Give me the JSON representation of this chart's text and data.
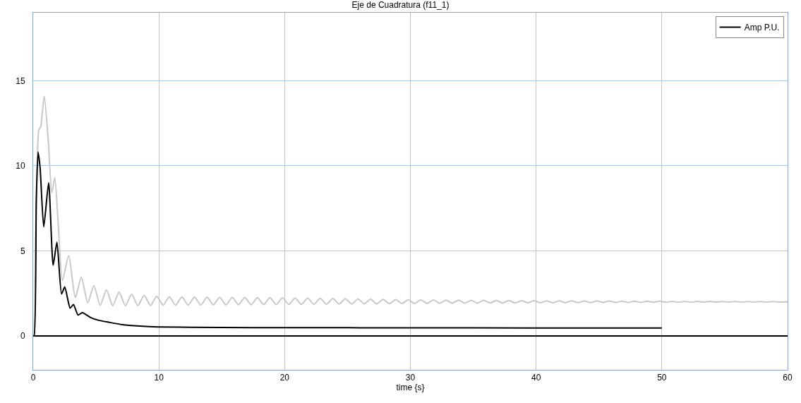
{
  "chart_data": {
    "type": "line",
    "title": "Eje de Cuadratura (f11_1)",
    "xlabel": "time {s}",
    "xlim": [
      0,
      60
    ],
    "xticks": [
      0,
      10,
      20,
      30,
      40,
      50,
      60
    ],
    "ylim": [
      -2,
      19
    ],
    "yticks": [
      0,
      5,
      10,
      15
    ],
    "grid": true,
    "legend": "top right",
    "marker": "none",
    "line_style": "solid",
    "series": [
      {
        "color": "#c8c8c8",
        "x": [
          0,
          0.07,
          0.2,
          0.35,
          0.45,
          0.6,
          0.88,
          1.2,
          1.48,
          1.72,
          2.0,
          2.32,
          2.83,
          3.35,
          3.83,
          4.34,
          4.83,
          5.33,
          5.83,
          6.33,
          6.83,
          7.33,
          7.83,
          8.33,
          8.83,
          9.33,
          9.83,
          10.33,
          10.83,
          11.33,
          11.83,
          12.33,
          12.83,
          13.33,
          13.83,
          14.33,
          14.83,
          15.33,
          15.83,
          16.33,
          16.83,
          17.33,
          17.83,
          18.33,
          18.83,
          19.33,
          19.83,
          20.33,
          20.83,
          21.33,
          21.83,
          22.33,
          22.83,
          23.33,
          23.83,
          24.33,
          24.83,
          25.33,
          25.83,
          26.33,
          26.83,
          27.33,
          27.83,
          28.33,
          28.83,
          29.33,
          29.83,
          30.33,
          30.83,
          31.33,
          31.83,
          32.33,
          32.83,
          33.33,
          33.83,
          34.33,
          34.83,
          35.33,
          35.83,
          36.33,
          36.83,
          37.33,
          37.83,
          38.33,
          38.83,
          39.33,
          39.83,
          40.33,
          40.83,
          41.33,
          41.83,
          42.33,
          42.83,
          43.33,
          43.83,
          44.33,
          44.83,
          45.33,
          45.83,
          46.33,
          46.83,
          47.33,
          47.83,
          48.33,
          48.83,
          49.33,
          49.83,
          50.33,
          50.83,
          51.33,
          51.83,
          52.33,
          52.83,
          53.33,
          53.83,
          54.33,
          54.83,
          55.33,
          55.83,
          56.33,
          56.83,
          57.33,
          57.83,
          58.33,
          58.83,
          59.33,
          60
        ],
        "values": [
          0,
          0,
          6,
          11,
          12.1,
          12.3,
          14.1,
          11.5,
          8.4,
          9.3,
          6.5,
          3.25,
          4.72,
          2.25,
          3.46,
          1.94,
          2.95,
          1.8,
          2.7,
          1.77,
          2.58,
          1.77,
          2.45,
          1.78,
          2.38,
          1.78,
          2.33,
          1.8,
          2.3,
          1.8,
          2.29,
          1.81,
          2.28,
          1.81,
          2.27,
          1.82,
          2.26,
          1.82,
          2.25,
          1.83,
          2.25,
          1.83,
          2.24,
          1.84,
          2.24,
          1.84,
          2.23,
          1.84,
          2.22,
          1.85,
          2.21,
          1.86,
          2.2,
          1.86,
          2.19,
          1.87,
          2.18,
          1.87,
          2.16,
          1.88,
          2.15,
          1.88,
          2.14,
          1.89,
          2.13,
          1.9,
          2.12,
          1.9,
          2.11,
          1.91,
          2.11,
          1.91,
          2.1,
          1.92,
          2.1,
          1.92,
          2.09,
          1.92,
          2.09,
          1.93,
          2.08,
          1.93,
          2.08,
          1.93,
          2.07,
          1.94,
          2.07,
          1.94,
          2.06,
          1.94,
          2.06,
          1.95,
          2.06,
          1.95,
          2.05,
          1.95,
          2.05,
          1.96,
          2.05,
          1.96,
          2.04,
          1.96,
          2.04,
          1.96,
          2.04,
          1.97,
          2.04,
          1.97,
          2.03,
          1.97,
          2.03,
          1.97,
          2.03,
          1.98,
          2.03,
          1.98,
          2.02,
          1.98,
          2.02,
          1.98,
          2.02,
          1.98,
          2.02,
          1.98,
          2.02,
          1.98,
          2.0
        ]
      },
      {
        "name": "Amp P.U.",
        "color": "#000000",
        "x": [
          0,
          0.07,
          0.25,
          0.39,
          0.55,
          0.84,
          1.23,
          1.59,
          1.89,
          2.26,
          2.51,
          2.94,
          3.2,
          3.57,
          3.91,
          4.56,
          5.22,
          6,
          7.09,
          8.5,
          9.9,
          15,
          20,
          30,
          40,
          50
        ],
        "values": [
          0,
          0,
          8,
          10.8,
          9.9,
          6.4,
          9.0,
          4.15,
          5.5,
          2.46,
          2.88,
          1.63,
          1.84,
          1.22,
          1.36,
          1.08,
          0.91,
          0.8,
          0.66,
          0.57,
          0.52,
          0.49,
          0.48,
          0.47,
          0.46,
          0.46
        ]
      }
    ]
  }
}
